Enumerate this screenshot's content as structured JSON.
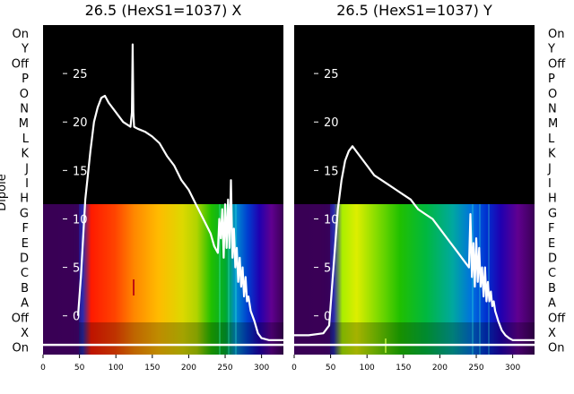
{
  "chart_data": [
    {
      "type": "line",
      "title": "26.5 (HexS1=1037) X",
      "xlim": [
        0,
        330
      ],
      "ylim": [
        -4,
        30
      ],
      "x_ticks": [
        0,
        50,
        100,
        150,
        200,
        250,
        300
      ],
      "y_ticks": [
        0,
        5,
        10,
        15,
        20,
        25
      ],
      "y_tick_labels_visible": [
        "5",
        "10",
        "15",
        "20",
        "25"
      ],
      "ylabel": "Dipole",
      "row_labels": [
        "On",
        "Y",
        "Off",
        "P",
        "O",
        "N",
        "M",
        "L",
        "K",
        "J",
        "I",
        "H",
        "G",
        "F",
        "E",
        "D",
        "C",
        "B",
        "A",
        "Off",
        "X",
        "On"
      ],
      "reference_line_y": -3,
      "series": [
        {
          "x": [
            48,
            52,
            58,
            65,
            70,
            75,
            80,
            85,
            90,
            100,
            110,
            120,
            122,
            123,
            124,
            125,
            130,
            140,
            150,
            160,
            170,
            180,
            190,
            200,
            210,
            220,
            230,
            235,
            240,
            242,
            244,
            246,
            248,
            250,
            252,
            254,
            256,
            258,
            260,
            262,
            264,
            266,
            268,
            270,
            272,
            274,
            276,
            278,
            280,
            282,
            285,
            290,
            295,
            300,
            310,
            320,
            330
          ],
          "y": [
            0,
            4,
            12,
            17,
            20,
            21.5,
            22.5,
            22.7,
            22,
            21,
            20,
            19.5,
            21,
            28,
            21,
            19.5,
            19.3,
            19,
            18.5,
            17.8,
            16.5,
            15.5,
            14,
            13,
            11.5,
            10,
            8.5,
            7.2,
            6.5,
            10,
            8,
            11,
            6,
            11.5,
            7,
            12,
            7,
            14,
            6,
            9,
            5,
            7,
            3.5,
            6,
            3,
            5,
            2,
            4,
            1.5,
            2,
            0.5,
            -0.5,
            -1.8,
            -2.3,
            -2.5,
            -2.5,
            -2.5
          ]
        }
      ]
    },
    {
      "type": "line",
      "title": "26.5 (HexS1=1037) Y",
      "xlim": [
        0,
        330
      ],
      "ylim": [
        -4,
        30
      ],
      "x_ticks": [
        0,
        50,
        100,
        150,
        200,
        250,
        300
      ],
      "y_ticks": [
        0,
        5,
        10,
        15,
        20,
        25
      ],
      "y_tick_labels_visible": [
        "5",
        "10",
        "15",
        "20",
        "25"
      ],
      "row_labels": [
        "On",
        "Y",
        "Off",
        "P",
        "O",
        "N",
        "M",
        "L",
        "K",
        "J",
        "I",
        "H",
        "G",
        "F",
        "E",
        "D",
        "C",
        "B",
        "A",
        "Off",
        "X",
        "On"
      ],
      "reference_line_y": -3,
      "series": [
        {
          "x": [
            0,
            20,
            40,
            48,
            52,
            56,
            60,
            65,
            70,
            75,
            80,
            90,
            100,
            110,
            120,
            130,
            140,
            150,
            160,
            170,
            180,
            190,
            200,
            210,
            220,
            230,
            235,
            240,
            242,
            244,
            246,
            248,
            250,
            252,
            254,
            256,
            258,
            260,
            262,
            264,
            266,
            268,
            270,
            272,
            274,
            276,
            278,
            280,
            285,
            290,
            295,
            300,
            310,
            320,
            330
          ],
          "y": [
            -2,
            -2,
            -1.8,
            -1,
            3,
            7,
            11,
            14,
            16,
            17,
            17.5,
            16.5,
            15.5,
            14.5,
            14,
            13.5,
            13,
            12.5,
            12,
            11,
            10.5,
            10,
            9,
            8,
            7,
            6,
            5.5,
            5,
            10.5,
            4,
            7.5,
            3,
            8,
            3.5,
            7,
            3,
            5,
            2,
            5,
            1.5,
            3.5,
            1.5,
            2.5,
            1,
            1.5,
            0.5,
            0,
            -0.5,
            -1.5,
            -2,
            -2.3,
            -2.5,
            -2.5,
            -2.5,
            -2.5
          ]
        }
      ]
    }
  ]
}
